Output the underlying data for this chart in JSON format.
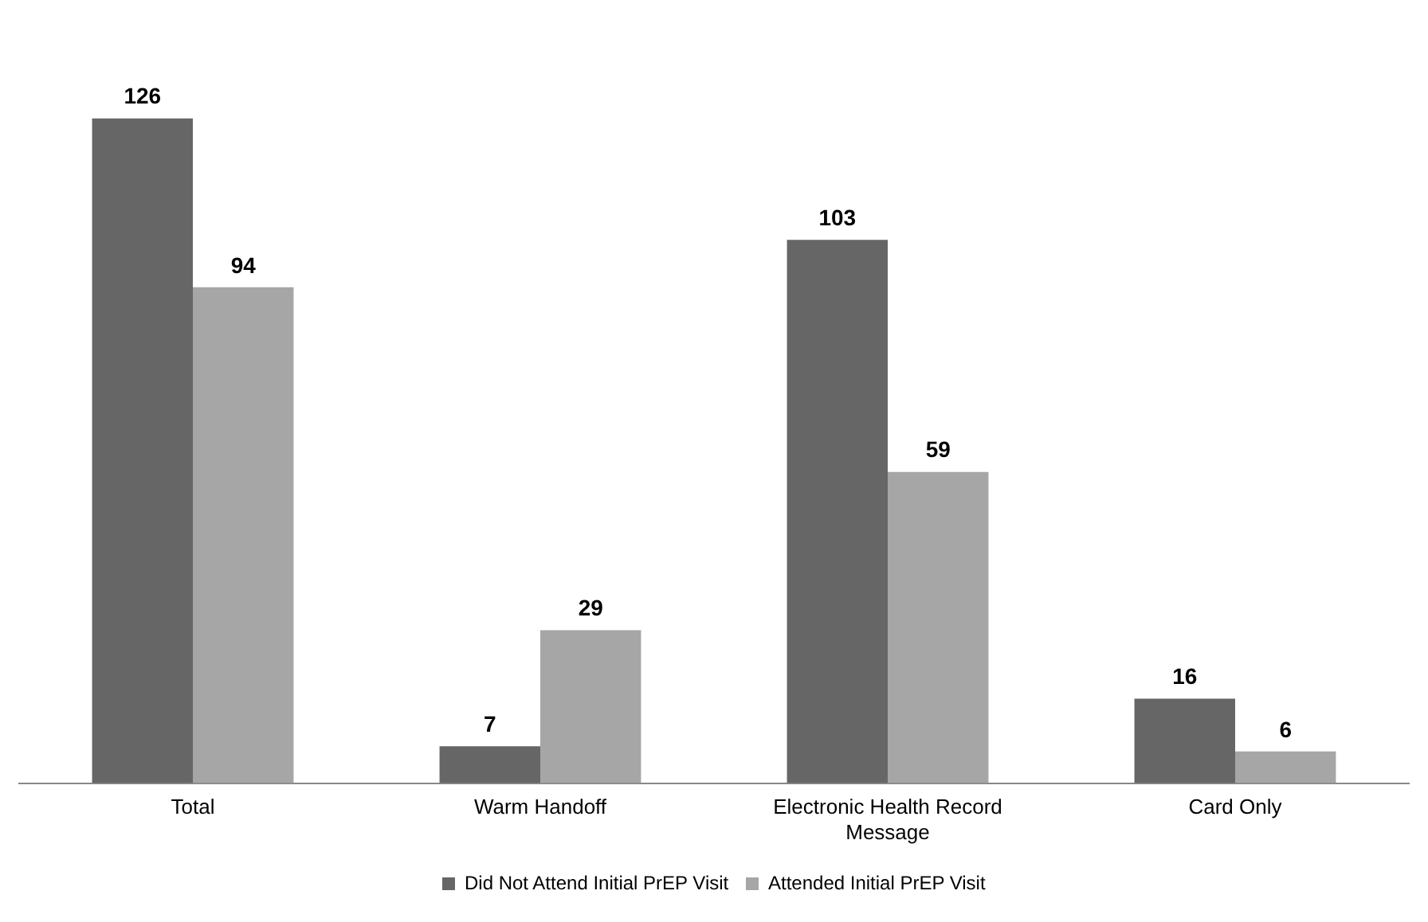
{
  "chart_data": {
    "type": "bar",
    "categories": [
      "Total",
      "Warm Handoff",
      "Electronic Health Record Message",
      "Card Only"
    ],
    "series": [
      {
        "name": "Did Not Attend Initial PrEP Visit",
        "color": "#666666",
        "values": [
          126,
          7,
          103,
          16
        ]
      },
      {
        "name": "Attended Initial PrEP Visit",
        "color": "#a6a6a6",
        "values": [
          94,
          29,
          59,
          6
        ]
      }
    ],
    "tick_labels": "x",
    "data_labels": true,
    "legend": "bottom",
    "grid": false
  }
}
